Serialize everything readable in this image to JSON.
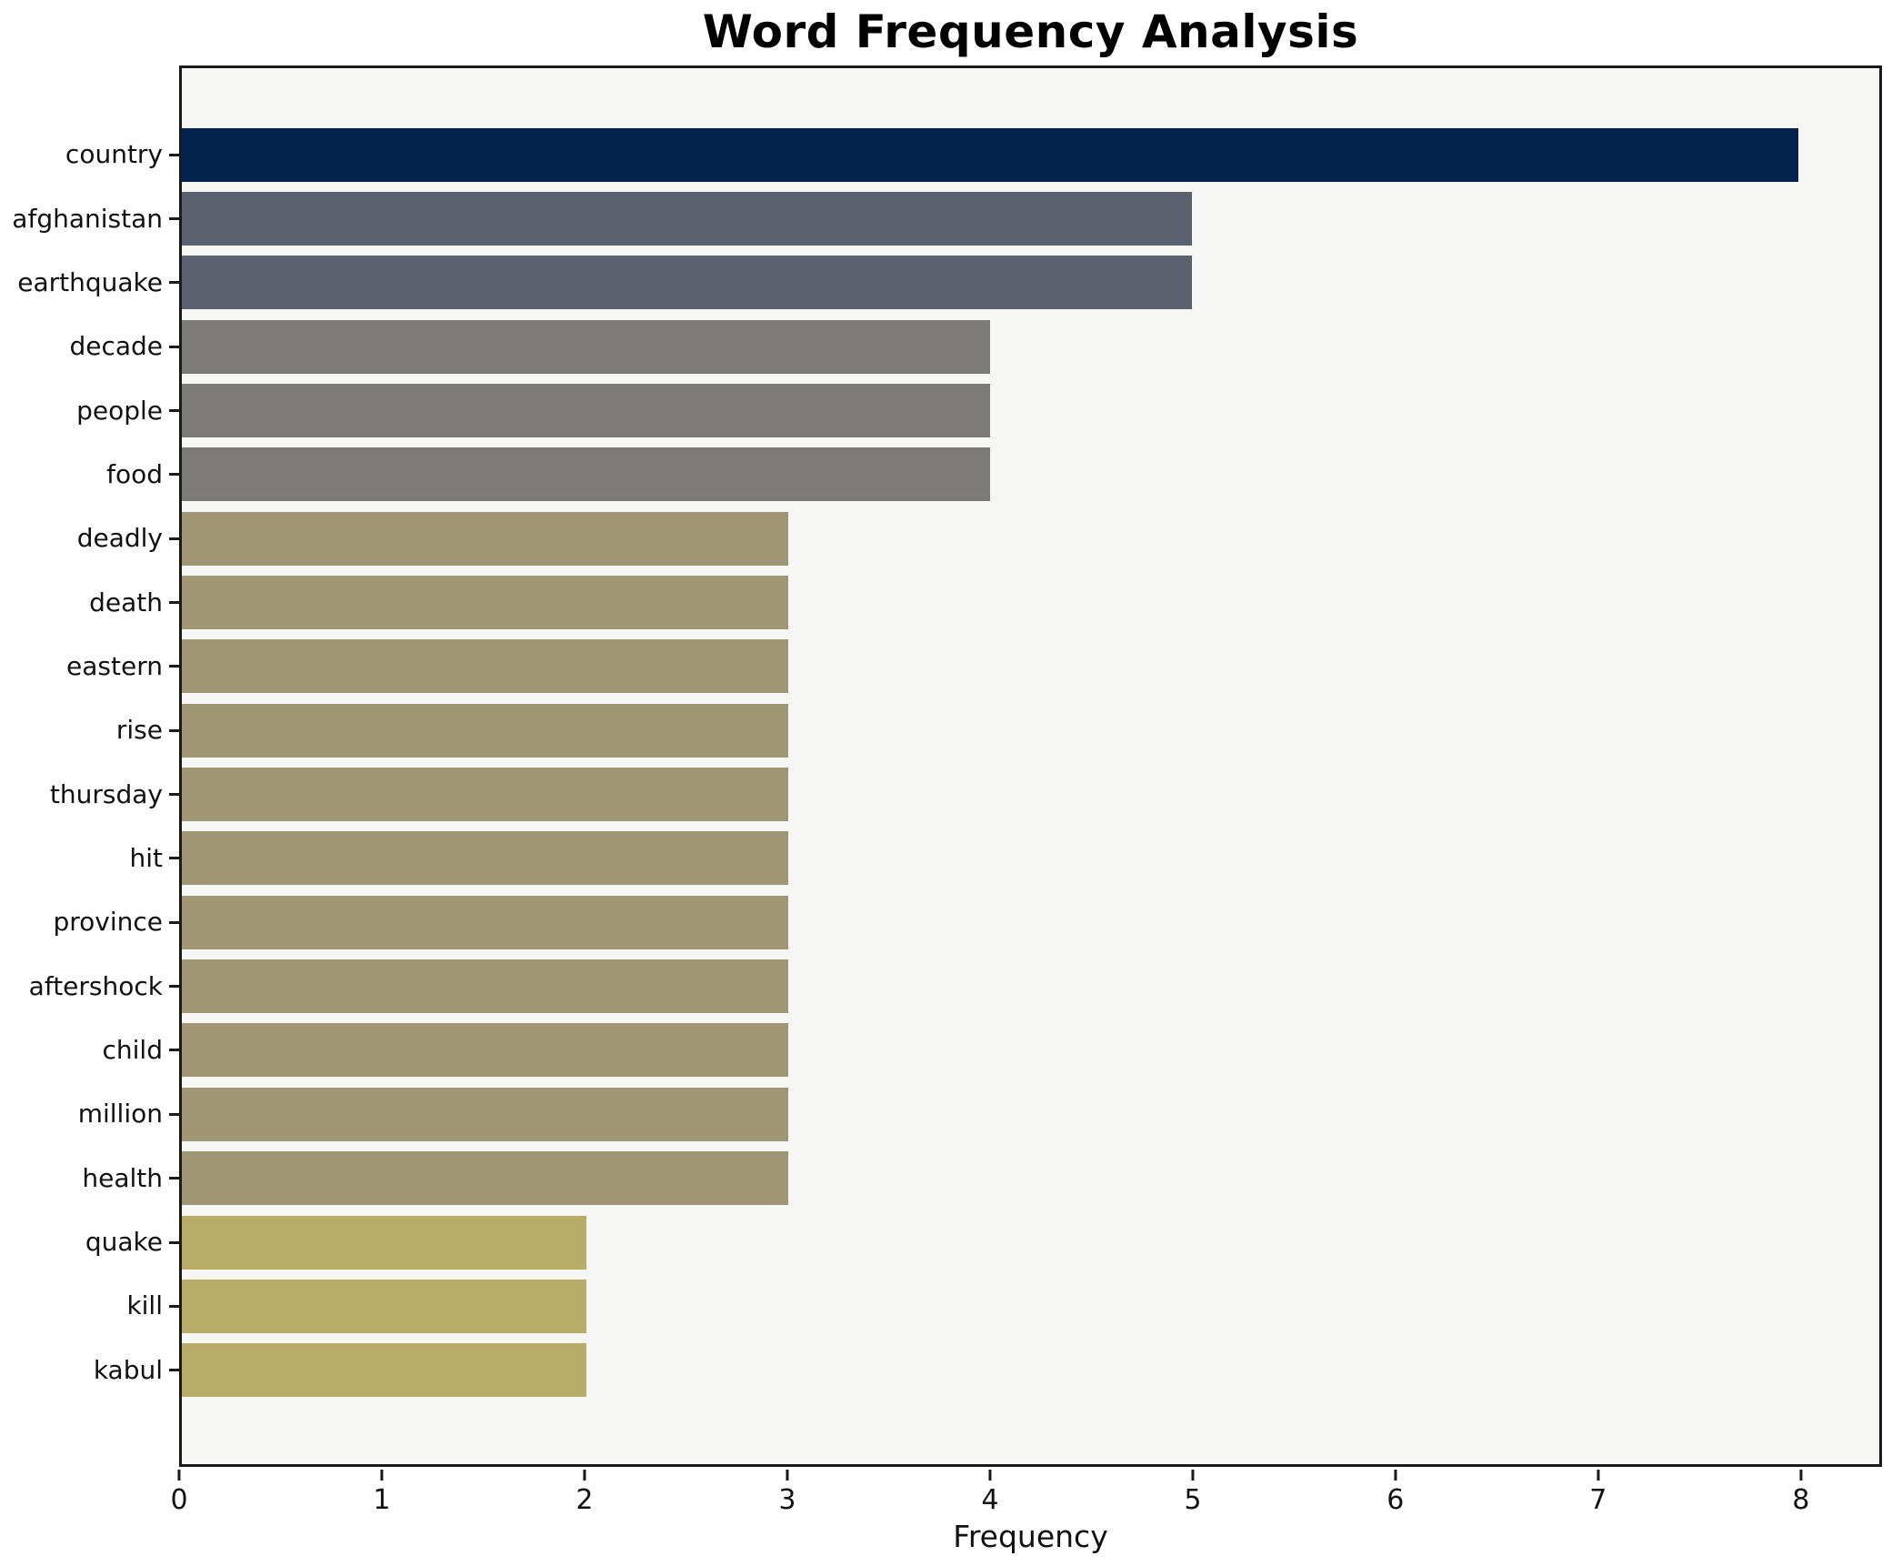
{
  "chart_data": {
    "type": "bar",
    "orientation": "horizontal",
    "title": "Word Frequency Analysis",
    "xlabel": "Frequency",
    "ylabel": "",
    "categories": [
      "country",
      "afghanistan",
      "earthquake",
      "decade",
      "people",
      "food",
      "deadly",
      "death",
      "eastern",
      "rise",
      "thursday",
      "hit",
      "province",
      "aftershock",
      "child",
      "million",
      "health",
      "quake",
      "kill",
      "kabul"
    ],
    "values": [
      8,
      5,
      5,
      4,
      4,
      4,
      3,
      3,
      3,
      3,
      3,
      3,
      3,
      3,
      3,
      3,
      3,
      2,
      2,
      2
    ],
    "bar_colors": [
      "#03234e",
      "#5c6170",
      "#5c6170",
      "#7b7a76",
      "#7b7a76",
      "#7b7a76",
      "#9e9675",
      "#9e9675",
      "#9e9675",
      "#9e9675",
      "#9e9675",
      "#9e9675",
      "#9e9675",
      "#9e9675",
      "#9e9675",
      "#9e9675",
      "#9e9675",
      "#b9ab68",
      "#b9ab68",
      "#b9ab68"
    ],
    "xlim": [
      0,
      8.4
    ],
    "xticks": [
      0,
      1,
      2,
      3,
      4,
      5,
      6,
      7,
      8
    ],
    "grid": false,
    "legend": null,
    "colors": {
      "plot_background": "#f6f6f4",
      "figure_background": "#ffffff",
      "spine": "#1a1a1a",
      "text": "#111111"
    }
  }
}
